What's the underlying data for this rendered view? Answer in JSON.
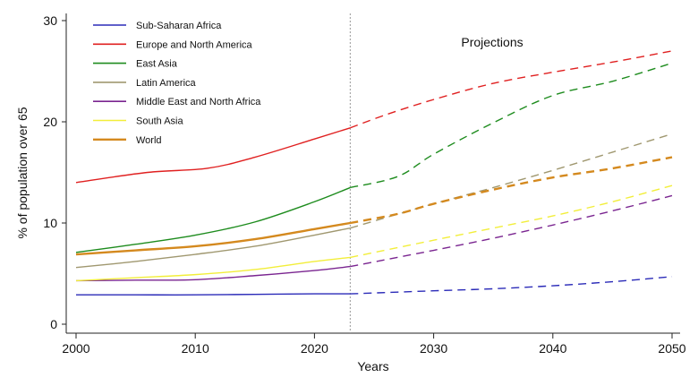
{
  "chart_data": {
    "type": "line",
    "title": "",
    "xlabel": "Years",
    "ylabel": "% of population over 65",
    "xlim": [
      1999,
      2051
    ],
    "ylim": [
      -1,
      30.5
    ],
    "x_ticks": [
      2000,
      2010,
      2020,
      2030,
      2040,
      2050
    ],
    "y_ticks": [
      0,
      10,
      20,
      30
    ],
    "grid": false,
    "legend_position": "top-left",
    "projection_start_year": 2023,
    "annotation": "Projections",
    "line_style_note": "solid for observed years, dashed for projected years",
    "series": [
      {
        "name": "Sub-Saharan Africa",
        "color": "#2b2bb8",
        "historical": {
          "x": [
            2000,
            2005,
            2010,
            2015,
            2020,
            2023
          ],
          "y": [
            2.9,
            2.9,
            2.9,
            2.95,
            3.0,
            3.0
          ]
        },
        "projection": {
          "x": [
            2023,
            2030,
            2035,
            2040,
            2045,
            2050
          ],
          "y": [
            3.0,
            3.3,
            3.5,
            3.8,
            4.2,
            4.7
          ]
        }
      },
      {
        "name": "Europe and North America",
        "color": "#e02020",
        "historical": {
          "x": [
            2000,
            2006,
            2011,
            2015,
            2020,
            2023
          ],
          "y": [
            14.0,
            15.0,
            15.4,
            16.5,
            18.3,
            19.4
          ]
        },
        "projection": {
          "x": [
            2023,
            2026,
            2030,
            2035,
            2040,
            2045,
            2050
          ],
          "y": [
            19.4,
            20.7,
            22.2,
            23.8,
            24.9,
            25.9,
            27.0
          ]
        }
      },
      {
        "name": "East Asia",
        "color": "#1e8c1e",
        "historical": {
          "x": [
            2000,
            2005,
            2010,
            2015,
            2020,
            2023
          ],
          "y": [
            7.1,
            7.9,
            8.8,
            10.1,
            12.1,
            13.5
          ]
        },
        "projection": {
          "x": [
            2023,
            2027,
            2030,
            2035,
            2040,
            2045,
            2050
          ],
          "y": [
            13.5,
            14.6,
            16.8,
            19.9,
            22.6,
            24.0,
            25.8
          ]
        }
      },
      {
        "name": "Latin America",
        "color": "#a09870",
        "historical": {
          "x": [
            2000,
            2005,
            2010,
            2015,
            2020,
            2023
          ],
          "y": [
            5.6,
            6.2,
            6.9,
            7.7,
            8.8,
            9.5
          ]
        },
        "projection": {
          "x": [
            2023,
            2030,
            2035,
            2040,
            2045,
            2050
          ],
          "y": [
            9.5,
            11.9,
            13.5,
            15.2,
            17.0,
            18.8
          ]
        }
      },
      {
        "name": "Middle East and North Africa",
        "color": "#7a2590",
        "historical": {
          "x": [
            2000,
            2005,
            2010,
            2015,
            2020,
            2023
          ],
          "y": [
            4.3,
            4.35,
            4.4,
            4.8,
            5.3,
            5.7
          ]
        },
        "projection": {
          "x": [
            2023,
            2030,
            2035,
            2040,
            2045,
            2050
          ],
          "y": [
            5.7,
            7.3,
            8.5,
            9.8,
            11.2,
            12.7
          ]
        }
      },
      {
        "name": "South Asia",
        "color": "#f2ee3a",
        "historical": {
          "x": [
            2000,
            2005,
            2010,
            2015,
            2020,
            2023
          ],
          "y": [
            4.3,
            4.6,
            4.9,
            5.4,
            6.2,
            6.6
          ]
        },
        "projection": {
          "x": [
            2023,
            2030,
            2035,
            2040,
            2045,
            2050
          ],
          "y": [
            6.6,
            8.3,
            9.5,
            10.7,
            12.1,
            13.7
          ]
        }
      },
      {
        "name": "World",
        "color": "#d4891e",
        "historical": {
          "x": [
            2000,
            2005,
            2010,
            2015,
            2020,
            2023
          ],
          "y": [
            6.9,
            7.3,
            7.7,
            8.4,
            9.4,
            10.0
          ]
        },
        "projection": {
          "x": [
            2023,
            2027,
            2030,
            2035,
            2040,
            2045,
            2050
          ],
          "y": [
            10.0,
            10.9,
            11.9,
            13.3,
            14.5,
            15.4,
            16.5
          ]
        }
      }
    ]
  }
}
